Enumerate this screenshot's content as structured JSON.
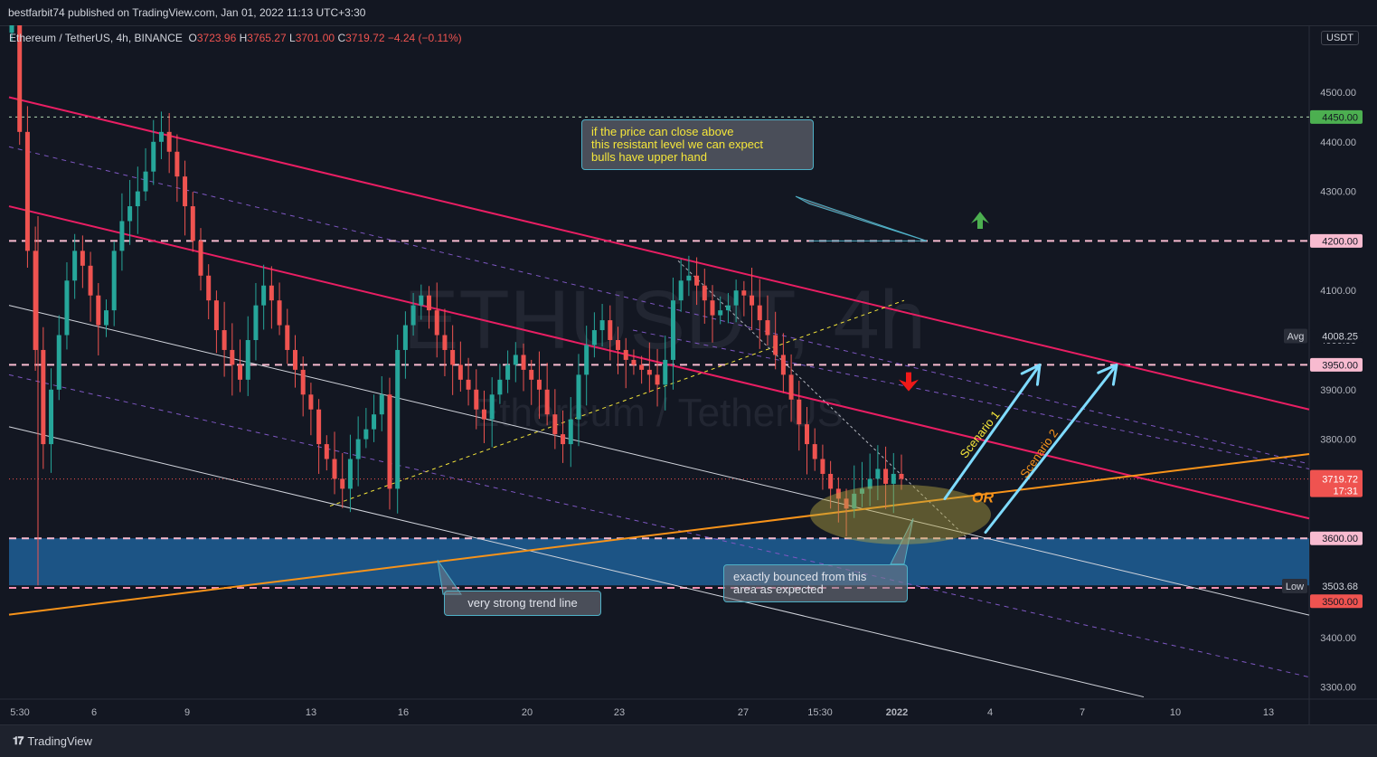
{
  "header": {
    "publish_text": "bestfarbit74 published on TradingView.com, Jan 01, 2022 11:13 UTC+3:30"
  },
  "legend": {
    "symbol": "Ethereum / TetherUS, 4h, BINANCE",
    "o_label": "O",
    "o_value": "3723.96",
    "h_label": "H",
    "h_value": "3765.27",
    "l_label": "L",
    "l_value": "3701.00",
    "c_label": "C",
    "c_value": "3719.72",
    "change": "−4.24 (−0.11%)"
  },
  "unit": "USDT",
  "watermark": {
    "ticker": "ETHUSDT, 4h",
    "name": "Ethereum / TetherUS"
  },
  "footer": {
    "brand": "TradingView"
  },
  "annotations": {
    "callout_top": "if the price can close above\nthis resistant level we can expect\nbulls have upper hand",
    "callout_trend": "very strong trend line",
    "callout_bounce": "exactly bounced from this\narea as expected",
    "scenario1": "Scenario 1",
    "scenario2": "Scenario 2",
    "or_text": "OR"
  },
  "price_badges": {
    "level_4450": "4450.00",
    "level_4200": "4200.00",
    "level_3950": "3950.00",
    "level_3600": "3600.00",
    "level_3500": "3500.00",
    "avg_label": "Avg",
    "avg_value": "4008.25",
    "low_label": "Low",
    "low_value": "3503.68",
    "last_price": "3719.72",
    "countdown": "17:31"
  },
  "colors": {
    "background": "#131722",
    "up": "#26a69a",
    "down": "#ef5350",
    "channel": "#e91e63",
    "trend": "#f7931a",
    "arrow": "#7fdbff",
    "zone": "#1f5f96"
  },
  "chart_data": {
    "type": "candlestick",
    "title": "Ethereum / TetherUS, 4h, BINANCE",
    "ylim": [
      3260,
      4680
    ],
    "y_ticks": [
      "4500.00",
      "4400.00",
      "4300.00",
      "4200.00",
      "4100.00",
      "4000.00",
      "3900.00",
      "3800.00",
      "3700.00",
      "3600.00",
      "3500.00",
      "3400.00",
      "3300.00"
    ],
    "x_ticks": [
      "5:30",
      "6",
      "9",
      "13",
      "16",
      "20",
      "23",
      "27",
      "15:30",
      "2022",
      "4",
      "7",
      "10",
      "13"
    ],
    "horizontal_levels": [
      4450,
      4200,
      3950,
      3600,
      3500
    ],
    "support_zone": [
      3505,
      3600
    ],
    "last_price": 3719.72,
    "average": 4008.25,
    "low": 3503.68,
    "closes": [
      4650,
      4420,
      4180,
      3980,
      3790,
      3900,
      4010,
      4120,
      4180,
      4150,
      4090,
      4030,
      4060,
      4180,
      4240,
      4270,
      4300,
      4340,
      4400,
      4420,
      4380,
      4330,
      4270,
      4200,
      4130,
      4080,
      4020,
      3980,
      3950,
      3920,
      4000,
      4070,
      4110,
      4080,
      4030,
      3980,
      3940,
      3890,
      3860,
      3790,
      3760,
      3720,
      3700,
      3760,
      3800,
      3820,
      3850,
      3890,
      3700,
      3980,
      4030,
      4070,
      4090,
      4060,
      4010,
      3980,
      3950,
      3920,
      3900,
      3860,
      3840,
      3890,
      3920,
      3950,
      3970,
      3940,
      3920,
      3900,
      3850,
      3810,
      3790,
      3840,
      3930,
      3990,
      4020,
      4040,
      4000,
      3980,
      3960,
      3950,
      3940,
      3930,
      3910,
      3960,
      4080,
      4120,
      4130,
      4110,
      4080,
      4050,
      4060,
      4070,
      4100,
      4090,
      4070,
      4040,
      4010,
      3970,
      3930,
      3880,
      3830,
      3790,
      3760,
      3730,
      3700,
      3680,
      3660,
      3690,
      3700,
      3720,
      3740,
      3710,
      3730,
      3720
    ]
  }
}
